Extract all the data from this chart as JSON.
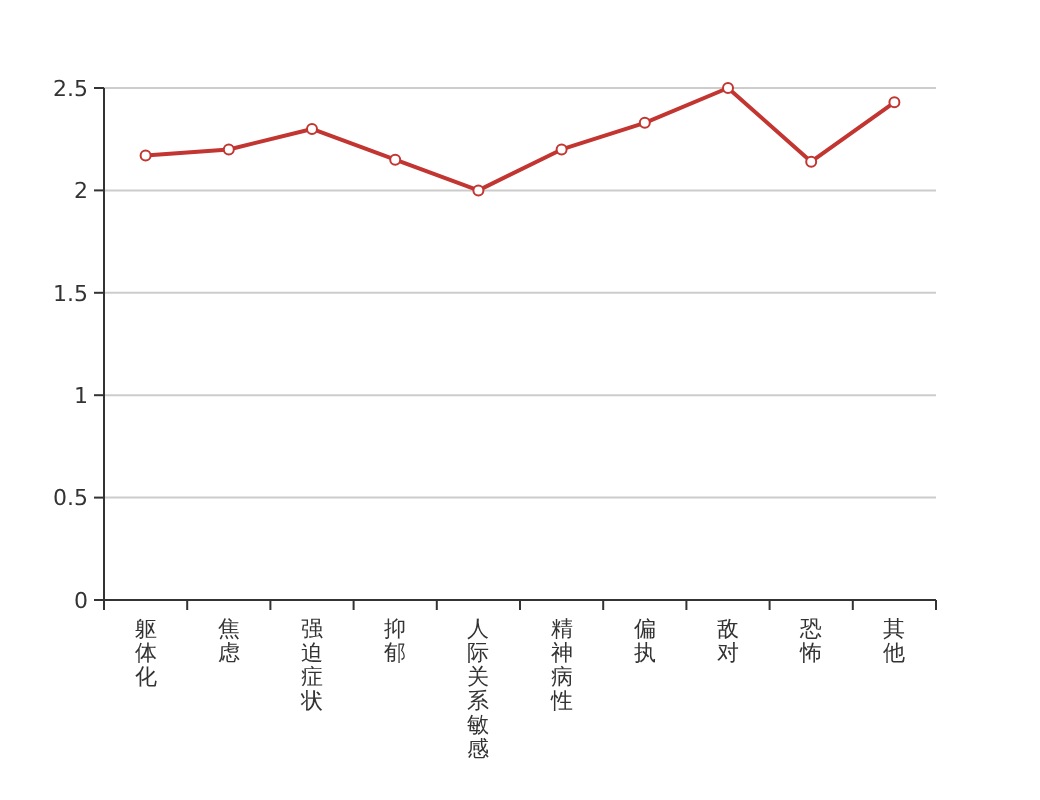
{
  "chart_data": {
    "type": "line",
    "categories": [
      "躯体化",
      "焦虑",
      "强迫症状",
      "抑郁",
      "人际关系敏感",
      "精神病性",
      "偏执",
      "敌对",
      "恐怖",
      "其他"
    ],
    "series": [
      {
        "color": "#c23531",
        "values": [
          2.17,
          2.2,
          2.3,
          2.15,
          2.0,
          2.2,
          2.33,
          2.5,
          2.14,
          2.43
        ]
      }
    ],
    "ylim": [
      0,
      2.5
    ],
    "yticks": [
      0,
      0.5,
      1,
      1.5,
      2,
      2.5
    ],
    "grid": "y",
    "marker": "circle",
    "line_style": "solid"
  }
}
